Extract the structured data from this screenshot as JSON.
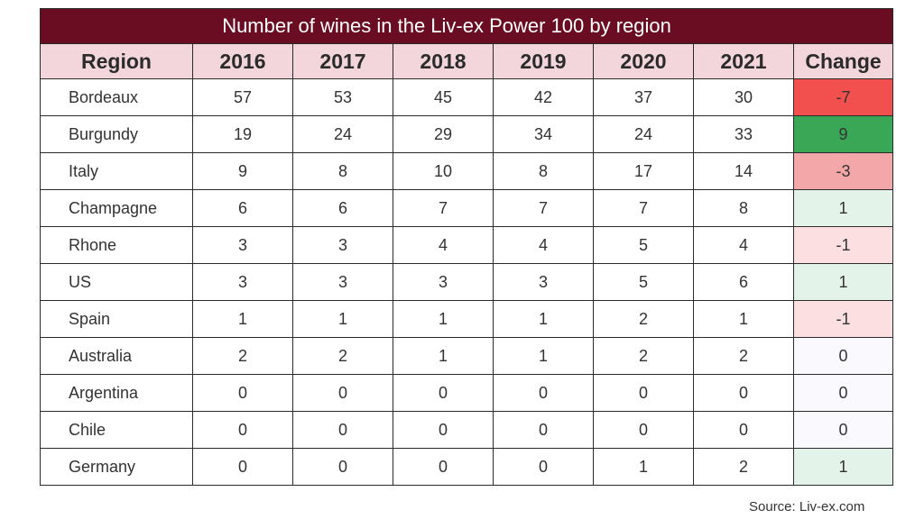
{
  "chart_data": {
    "type": "table",
    "title": "Number of wines in the Liv-ex Power 100 by region",
    "columns": [
      "Region",
      "2016",
      "2017",
      "2018",
      "2019",
      "2020",
      "2021",
      "Change"
    ],
    "rows": [
      {
        "region": "Bordeaux",
        "values": [
          57,
          53,
          45,
          42,
          37,
          30
        ],
        "change": "-7"
      },
      {
        "region": "Burgundy",
        "values": [
          19,
          24,
          29,
          34,
          24,
          33
        ],
        "change": "9"
      },
      {
        "region": "Italy",
        "values": [
          9,
          8,
          10,
          8,
          17,
          14
        ],
        "change": "-3"
      },
      {
        "region": "Champagne",
        "values": [
          6,
          6,
          7,
          7,
          7,
          8
        ],
        "change": "1"
      },
      {
        "region": "Rhone",
        "values": [
          3,
          3,
          4,
          4,
          5,
          4
        ],
        "change": "-1"
      },
      {
        "region": "US",
        "values": [
          3,
          3,
          3,
          3,
          5,
          6
        ],
        "change": "1"
      },
      {
        "region": "Spain",
        "values": [
          1,
          1,
          1,
          1,
          2,
          1
        ],
        "change": "-1"
      },
      {
        "region": "Australia",
        "values": [
          2,
          2,
          1,
          1,
          2,
          2
        ],
        "change": "0"
      },
      {
        "region": "Argentina",
        "values": [
          0,
          0,
          0,
          0,
          0,
          0
        ],
        "change": "0"
      },
      {
        "region": "Chile",
        "values": [
          0,
          0,
          0,
          0,
          0,
          0
        ],
        "change": "0"
      },
      {
        "region": "Germany",
        "values": [
          0,
          0,
          0,
          0,
          1,
          2
        ],
        "change": "1"
      }
    ],
    "change_colors": {
      "-7": "#f2504f",
      "9": "#3aa757",
      "-3": "#f4a7a9",
      "-1": "#fcdfe1",
      "1": "#e3f3ea",
      "0": "#faf9fd"
    },
    "colors": {
      "title_bg": "#6b0d22",
      "header_bg": "#f3d6dc"
    }
  },
  "source": "Source: Liv-ex.com"
}
